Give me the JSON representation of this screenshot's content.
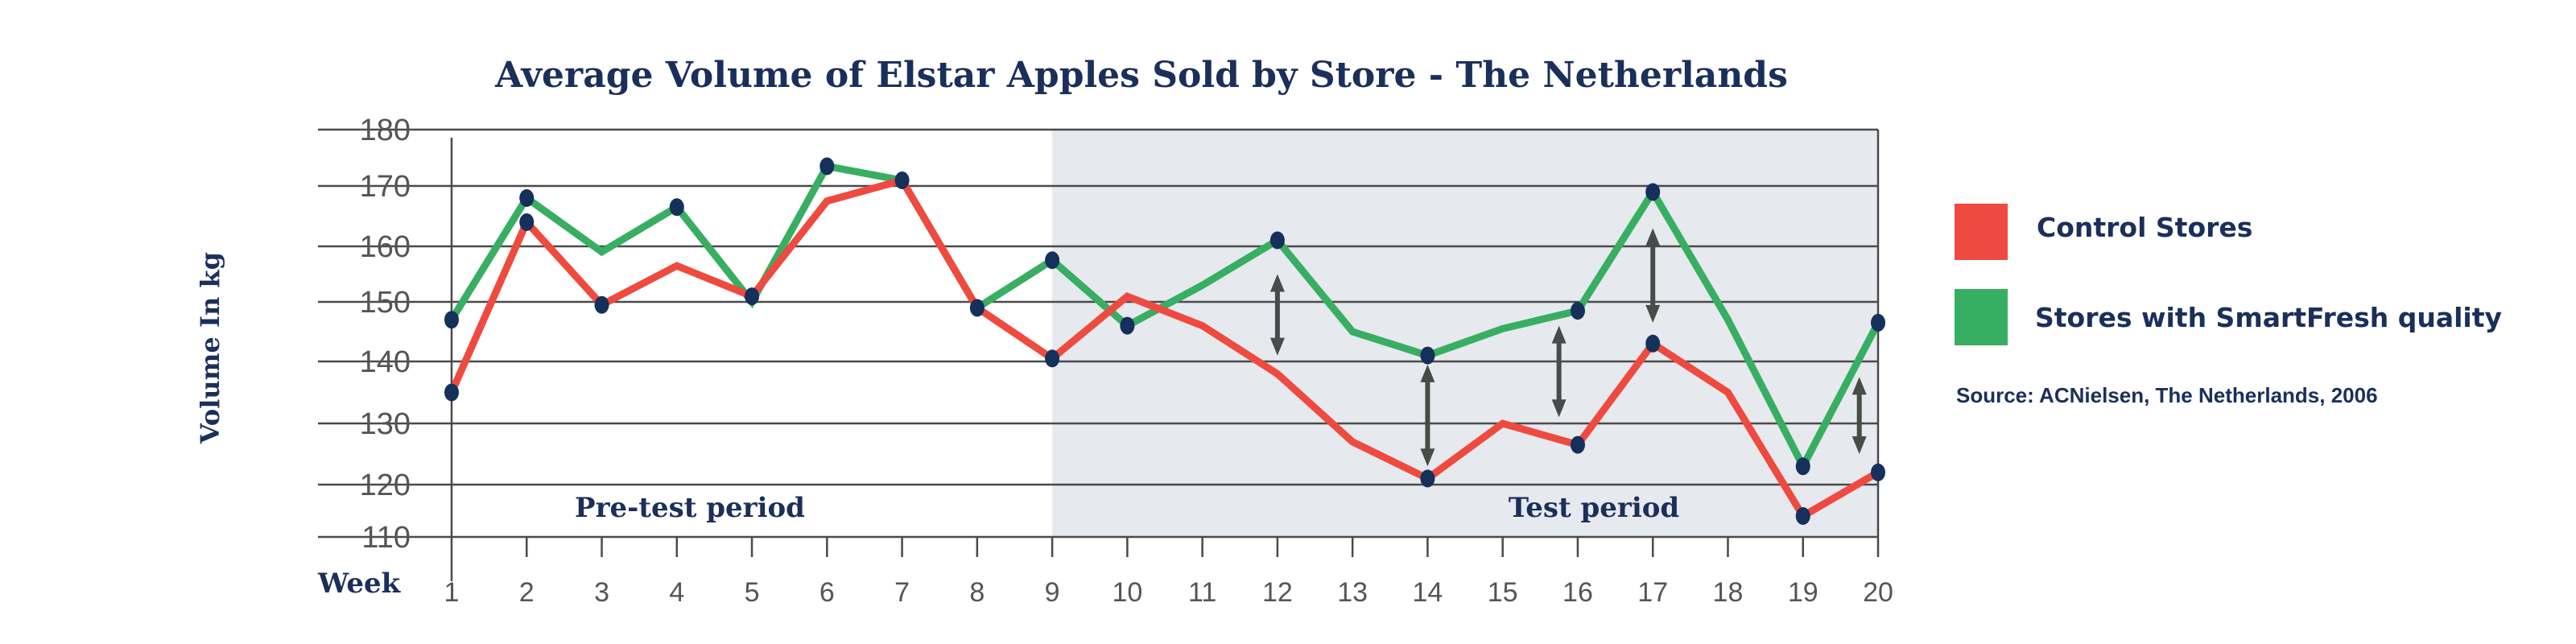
{
  "chart_data": {
    "type": "line",
    "title": "Average Volume of Elstar Apples Sold by Store - The Netherlands",
    "xlabel": "Week",
    "ylabel": "Volume In kg",
    "x": [
      1,
      2,
      3,
      4,
      5,
      6,
      7,
      8,
      9,
      10,
      11,
      12,
      13,
      14,
      15,
      16,
      17,
      18,
      19,
      20
    ],
    "y_ticks": [
      110,
      120,
      130,
      140,
      150,
      160,
      170,
      180
    ],
    "ylim": [
      110,
      180
    ],
    "grid": "horizontal",
    "series": [
      {
        "name": "Control Stores",
        "color": "#ef4a40",
        "values": [
          135,
          164,
          149.5,
          156.5,
          151,
          167.5,
          171,
          149,
          140.5,
          151,
          146,
          138,
          127,
          121,
          130,
          126.5,
          143,
          135,
          114,
          122
        ],
        "markers": [
          1,
          2,
          3,
          5,
          7,
          8,
          9,
          14,
          16,
          17,
          19,
          20
        ]
      },
      {
        "name": "Stores with SmartFresh quality",
        "color": "#38ae62",
        "values": [
          147,
          168,
          159,
          166.5,
          150,
          173.5,
          171,
          149,
          157.5,
          146,
          153,
          161,
          145,
          141,
          145.5,
          148.5,
          169,
          147,
          123,
          146.5
        ],
        "markers": [
          1,
          2,
          4,
          6,
          9,
          10,
          12,
          14,
          16,
          17,
          19,
          20
        ]
      }
    ],
    "regions": [
      {
        "label": "Pre-test period",
        "from_week": 1,
        "to_week": 9,
        "shaded": false
      },
      {
        "label": "Test period",
        "from_week": 9,
        "to_week": 20,
        "shaded": true,
        "color": "#e6e9ee"
      }
    ],
    "annotations": [
      {
        "type": "double-arrow",
        "week": 12,
        "from": 141,
        "to": 155
      },
      {
        "type": "double-arrow",
        "week": 14,
        "from": 123,
        "to": 139.5
      },
      {
        "type": "double-arrow",
        "week": 15.75,
        "from": 131,
        "to": 146
      },
      {
        "type": "double-arrow",
        "week": 17,
        "from": 146.5,
        "to": 163
      },
      {
        "type": "double-arrow",
        "week": 19.75,
        "from": 125,
        "to": 137.5
      }
    ],
    "legend": "right",
    "marker_color": "#14305b",
    "source": "Source: ACNielsen, The Netherlands, 2006"
  }
}
